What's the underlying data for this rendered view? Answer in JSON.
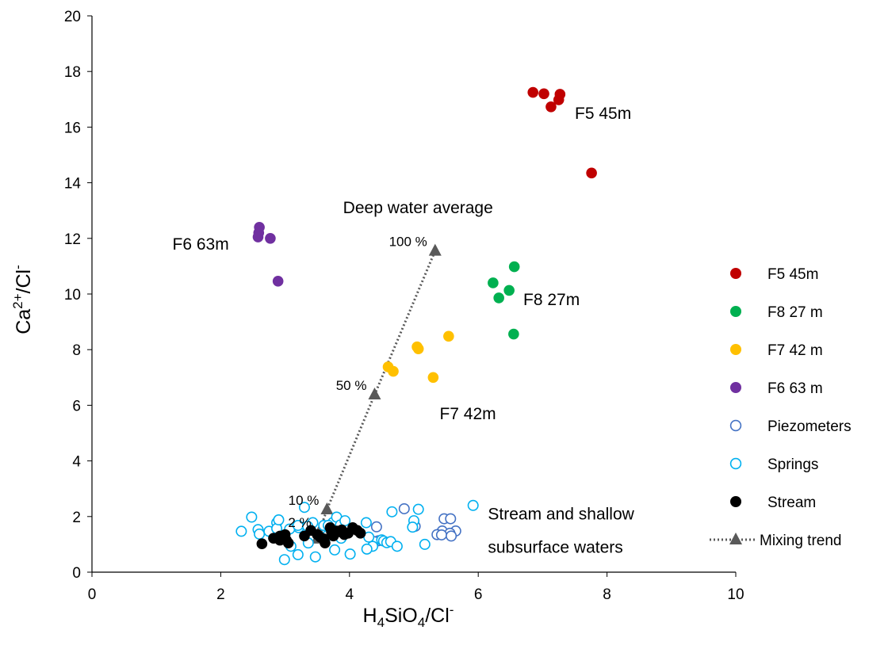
{
  "chart_data": {
    "type": "scatter",
    "xlabel": {
      "main": "H",
      "sub1": "4",
      "mid": "SiO",
      "sub2": "4",
      "tail": "/Cl",
      "sup": "-"
    },
    "ylabel": {
      "main": "Ca",
      "sup1": "2+",
      "mid": "/Cl",
      "sup2": "-"
    },
    "xlim": [
      0,
      10
    ],
    "ylim": [
      0,
      20
    ],
    "xticks": [
      "0",
      "2",
      "4",
      "6",
      "8",
      "10"
    ],
    "yticks": [
      "0",
      "2",
      "4",
      "6",
      "8",
      "10",
      "12",
      "14",
      "16",
      "18",
      "20"
    ],
    "grid": false,
    "legend_position": "right",
    "series": [
      {
        "name": "F5 45m",
        "marker": "filled-circle",
        "color": "#c00000",
        "points": [
          [
            6.85,
            17.25
          ],
          [
            7.02,
            17.2
          ],
          [
            7.27,
            17.18
          ],
          [
            7.25,
            16.98
          ],
          [
            7.13,
            16.73
          ],
          [
            7.76,
            14.35
          ]
        ]
      },
      {
        "name": "F8 27 m",
        "marker": "filled-circle",
        "color": "#00b050",
        "points": [
          [
            6.56,
            10.98
          ],
          [
            6.23,
            10.4
          ],
          [
            6.48,
            10.13
          ],
          [
            6.32,
            9.86
          ],
          [
            6.55,
            8.56
          ]
        ]
      },
      {
        "name": "F7 42 m",
        "marker": "filled-circle",
        "color": "#ffc000",
        "points": [
          [
            5.05,
            8.1
          ],
          [
            5.07,
            8.03
          ],
          [
            5.54,
            8.48
          ],
          [
            4.6,
            7.38
          ],
          [
            4.68,
            7.22
          ],
          [
            5.3,
            7.0
          ]
        ]
      },
      {
        "name": "F6 63 m",
        "marker": "filled-circle",
        "color": "#7030a0",
        "points": [
          [
            2.6,
            12.4
          ],
          [
            2.59,
            12.2
          ],
          [
            2.58,
            12.05
          ],
          [
            2.77,
            12.0
          ],
          [
            2.89,
            10.46
          ]
        ]
      },
      {
        "name": "Piezometers",
        "marker": "open-circle",
        "color": "#4472c4",
        "points": [
          [
            4.85,
            2.28
          ],
          [
            5.47,
            1.92
          ],
          [
            5.57,
            1.92
          ],
          [
            4.42,
            1.63
          ],
          [
            5.02,
            1.65
          ],
          [
            5.65,
            1.48
          ],
          [
            5.44,
            1.48
          ],
          [
            5.56,
            1.4
          ],
          [
            5.36,
            1.35
          ],
          [
            5.43,
            1.34
          ],
          [
            5.58,
            1.3
          ],
          [
            4.45,
            1.13
          ],
          [
            4.38,
            1.1
          ]
        ]
      },
      {
        "name": "Springs",
        "marker": "open-circle",
        "color": "#00b0f0",
        "points": [
          [
            2.48,
            1.98
          ],
          [
            2.87,
            1.78
          ],
          [
            3.3,
            2.33
          ],
          [
            3.21,
            1.6
          ],
          [
            3.6,
            1.68
          ],
          [
            3.74,
            1.78
          ],
          [
            3.43,
            1.78
          ],
          [
            3.67,
            1.68
          ],
          [
            3.8,
            1.98
          ],
          [
            4.66,
            2.17
          ],
          [
            5.07,
            2.26
          ],
          [
            5.92,
            2.4
          ],
          [
            4.26,
            1.78
          ],
          [
            5.0,
            1.85
          ],
          [
            4.98,
            1.62
          ],
          [
            2.32,
            1.47
          ],
          [
            2.58,
            1.53
          ],
          [
            2.6,
            1.37
          ],
          [
            2.75,
            1.47
          ],
          [
            2.87,
            1.57
          ],
          [
            2.9,
            1.88
          ],
          [
            3.07,
            1.55
          ],
          [
            3.2,
            1.68
          ],
          [
            3.35,
            1.65
          ],
          [
            3.86,
            1.7
          ],
          [
            3.93,
            1.85
          ],
          [
            4.3,
            1.26
          ],
          [
            4.5,
            1.16
          ],
          [
            4.53,
            1.12
          ],
          [
            4.58,
            1.06
          ],
          [
            4.64,
            1.1
          ],
          [
            4.36,
            0.93
          ],
          [
            4.27,
            0.83
          ],
          [
            4.74,
            0.93
          ],
          [
            5.17,
            1.0
          ],
          [
            3.09,
            0.93
          ],
          [
            3.2,
            0.63
          ],
          [
            2.99,
            0.45
          ],
          [
            3.47,
            0.55
          ],
          [
            3.77,
            0.8
          ],
          [
            4.01,
            0.65
          ],
          [
            3.36,
            1.05
          ],
          [
            2.98,
            1.33
          ],
          [
            3.65,
            1.3
          ],
          [
            3.87,
            1.22
          ]
        ]
      },
      {
        "name": "Stream",
        "marker": "filled-circle",
        "color": "#000000",
        "points": [
          [
            2.64,
            1.02
          ],
          [
            2.82,
            1.22
          ],
          [
            2.92,
            1.3
          ],
          [
            3.0,
            1.35
          ],
          [
            3.02,
            1.15
          ],
          [
            3.05,
            1.05
          ],
          [
            2.92,
            1.15
          ],
          [
            3.3,
            1.3
          ],
          [
            3.5,
            1.35
          ],
          [
            3.55,
            1.25
          ],
          [
            3.6,
            1.2
          ],
          [
            3.62,
            1.05
          ],
          [
            3.7,
            1.6
          ],
          [
            3.72,
            1.45
          ],
          [
            3.8,
            1.48
          ],
          [
            3.88,
            1.52
          ],
          [
            3.92,
            1.35
          ],
          [
            3.98,
            1.4
          ],
          [
            4.05,
            1.6
          ],
          [
            4.12,
            1.5
          ],
          [
            4.17,
            1.4
          ],
          [
            3.75,
            1.3
          ],
          [
            3.85,
            1.45
          ],
          [
            3.4,
            1.5
          ]
        ]
      }
    ],
    "mixing_trend": {
      "name": "Mixing trend",
      "color": "#595959",
      "points": [
        [
          3.5,
          1.2
        ],
        [
          3.53,
          1.45
        ],
        [
          3.65,
          2.25
        ],
        [
          4.39,
          6.38
        ],
        [
          5.33,
          11.55
        ]
      ],
      "labels": [
        {
          "text": "2 %",
          "x": 3.53,
          "y": 1.45
        },
        {
          "text": "10 %",
          "x": 3.65,
          "y": 2.25
        },
        {
          "text": "50 %",
          "x": 4.39,
          "y": 6.38
        },
        {
          "text": "100 %",
          "x": 5.33,
          "y": 11.55
        }
      ]
    },
    "annotations": [
      {
        "text": "F5 45m",
        "x": 7.5,
        "y": 16.3
      },
      {
        "text": "Deep water average",
        "x": 3.9,
        "y": 12.9
      },
      {
        "text": "F6 63m",
        "x": 1.25,
        "y": 11.6
      },
      {
        "text": "F8 27m",
        "x": 6.7,
        "y": 9.6
      },
      {
        "text": "F7 42m",
        "x": 5.4,
        "y": 5.5
      },
      {
        "text": "Stream and shallow",
        "x": 6.15,
        "y": 1.9
      },
      {
        "text": "subsurface waters",
        "x": 6.15,
        "y": 0.7
      }
    ]
  }
}
